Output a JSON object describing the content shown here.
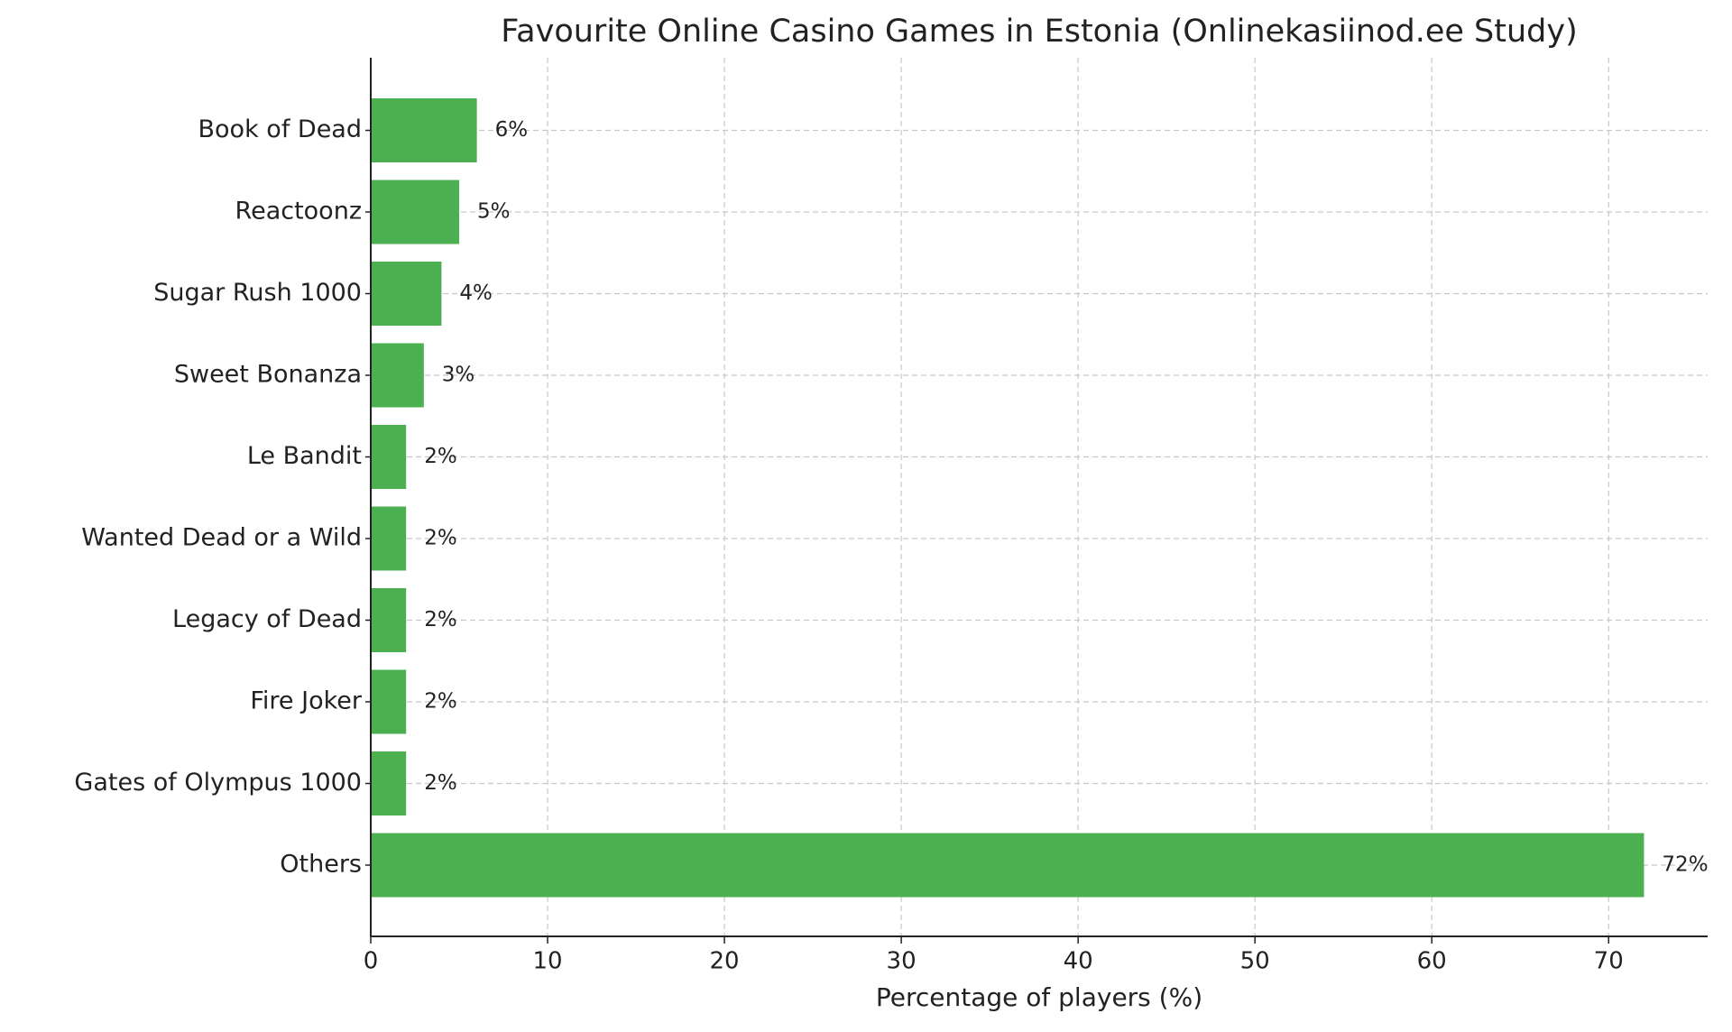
{
  "chart_data": {
    "type": "barh",
    "title": "Favourite Online Casino Games in Estonia (Onlinekasiinod.ee Study)",
    "x_label": "Percentage of players (%)",
    "categories": [
      "Book of Dead",
      "Reactoonz",
      "Sugar Rush 1000",
      "Sweet Bonanza",
      "Le Bandit",
      "Wanted Dead or a Wild",
      "Legacy of Dead",
      "Fire Joker",
      "Gates of Olympus 1000",
      "Others"
    ],
    "values": [
      6,
      5,
      4,
      3,
      2,
      2,
      2,
      2,
      2,
      72
    ],
    "value_labels": [
      "6%",
      "5%",
      "4%",
      "3%",
      "2%",
      "2%",
      "2%",
      "2%",
      "2%",
      "72%"
    ],
    "color": "#4caf50",
    "xlim": [
      0,
      75.6
    ],
    "xticks": [
      0,
      10,
      20,
      30,
      40,
      50,
      60,
      70
    ],
    "grid": true
  }
}
